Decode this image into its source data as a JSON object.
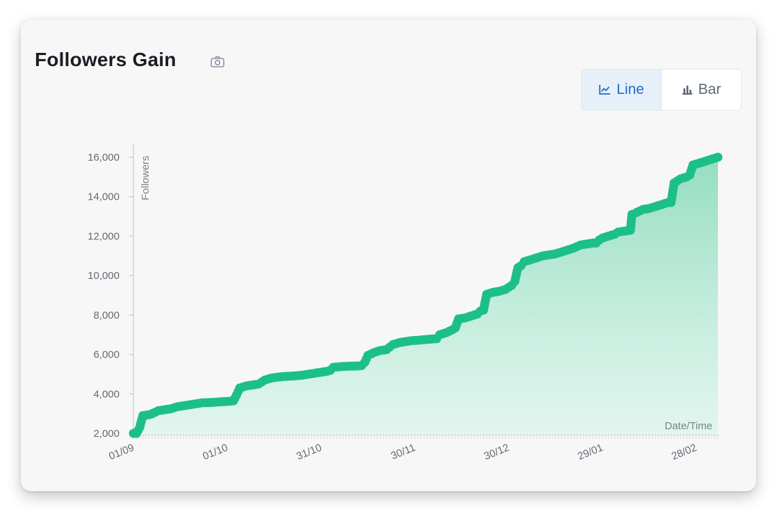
{
  "header": {
    "title": "Followers Gain"
  },
  "toggle": {
    "line_label": "Line",
    "bar_label": "Bar",
    "active": "Line"
  },
  "colors": {
    "line": "#1dbf88",
    "fill": "#8fdcbe",
    "active_bg": "#e6f0fb",
    "active_text": "#1f6fc2"
  },
  "chart_data": {
    "type": "line",
    "title": "Followers Gain",
    "ylabel": "Followers",
    "xlabel": "Date/Time",
    "ylim": [
      2000,
      16000
    ],
    "y_ticks": [
      "2,000",
      "4,000",
      "6,000",
      "8,000",
      "10,000",
      "12,000",
      "14,000",
      "16,000"
    ],
    "x_ticks": [
      "01/09",
      "01/10",
      "31/10",
      "30/11",
      "30/12",
      "29/01",
      "28/02"
    ],
    "x_tick_days": [
      0,
      30,
      60,
      90,
      120,
      150,
      180
    ],
    "x_range_days": [
      0,
      187
    ],
    "grid": false,
    "area_fill": true,
    "series": [
      {
        "points": [
          [
            0,
            2000
          ],
          [
            1,
            2000
          ],
          [
            2,
            2300
          ],
          [
            3,
            2900
          ],
          [
            5,
            2950
          ],
          [
            6,
            3000
          ],
          [
            8,
            3150
          ],
          [
            10,
            3200
          ],
          [
            12,
            3250
          ],
          [
            14,
            3350
          ],
          [
            16,
            3400
          ],
          [
            18,
            3450
          ],
          [
            20,
            3500
          ],
          [
            22,
            3550
          ],
          [
            24,
            3560
          ],
          [
            26,
            3580
          ],
          [
            28,
            3600
          ],
          [
            30,
            3620
          ],
          [
            32,
            3650
          ],
          [
            33,
            3950
          ],
          [
            34,
            4300
          ],
          [
            36,
            4400
          ],
          [
            38,
            4450
          ],
          [
            40,
            4500
          ],
          [
            41,
            4600
          ],
          [
            42,
            4700
          ],
          [
            44,
            4800
          ],
          [
            46,
            4850
          ],
          [
            48,
            4880
          ],
          [
            50,
            4900
          ],
          [
            52,
            4920
          ],
          [
            54,
            4950
          ],
          [
            56,
            5000
          ],
          [
            58,
            5050
          ],
          [
            60,
            5100
          ],
          [
            62,
            5150
          ],
          [
            63,
            5200
          ],
          [
            64,
            5350
          ],
          [
            66,
            5380
          ],
          [
            68,
            5400
          ],
          [
            70,
            5410
          ],
          [
            72,
            5420
          ],
          [
            73,
            5440
          ],
          [
            74,
            5600
          ],
          [
            75,
            5950
          ],
          [
            77,
            6100
          ],
          [
            79,
            6200
          ],
          [
            81,
            6250
          ],
          [
            83,
            6500
          ],
          [
            85,
            6600
          ],
          [
            87,
            6650
          ],
          [
            89,
            6700
          ],
          [
            91,
            6720
          ],
          [
            93,
            6750
          ],
          [
            95,
            6780
          ],
          [
            97,
            6800
          ],
          [
            98,
            7000
          ],
          [
            100,
            7100
          ],
          [
            102,
            7250
          ],
          [
            103,
            7350
          ],
          [
            104,
            7800
          ],
          [
            106,
            7850
          ],
          [
            108,
            7950
          ],
          [
            110,
            8050
          ],
          [
            111,
            8200
          ],
          [
            112,
            8250
          ],
          [
            113,
            9050
          ],
          [
            115,
            9150
          ],
          [
            117,
            9200
          ],
          [
            119,
            9300
          ],
          [
            120,
            9400
          ],
          [
            121,
            9500
          ],
          [
            122,
            9700
          ],
          [
            123,
            10400
          ],
          [
            124,
            10500
          ],
          [
            125,
            10700
          ],
          [
            127,
            10800
          ],
          [
            129,
            10900
          ],
          [
            131,
            11000
          ],
          [
            133,
            11050
          ],
          [
            135,
            11100
          ],
          [
            137,
            11200
          ],
          [
            139,
            11300
          ],
          [
            141,
            11400
          ],
          [
            143,
            11550
          ],
          [
            145,
            11600
          ],
          [
            147,
            11650
          ],
          [
            148,
            11650
          ],
          [
            149,
            11800
          ],
          [
            150,
            11900
          ],
          [
            152,
            12000
          ],
          [
            154,
            12100
          ],
          [
            155,
            12200
          ],
          [
            157,
            12250
          ],
          [
            159,
            12300
          ],
          [
            159.5,
            13100
          ],
          [
            161,
            13200
          ],
          [
            163,
            13350
          ],
          [
            165,
            13400
          ],
          [
            167,
            13500
          ],
          [
            169,
            13600
          ],
          [
            171,
            13700
          ],
          [
            172,
            13700
          ],
          [
            173,
            14700
          ],
          [
            175,
            14900
          ],
          [
            177,
            15000
          ],
          [
            178,
            15100
          ],
          [
            179,
            15600
          ],
          [
            181,
            15700
          ],
          [
            183,
            15800
          ],
          [
            185,
            15900
          ],
          [
            187,
            16000
          ]
        ]
      }
    ]
  }
}
